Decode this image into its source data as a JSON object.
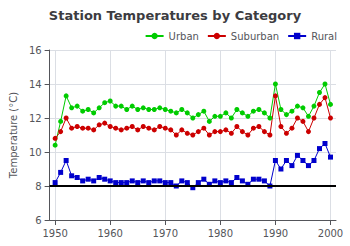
{
  "chart_data": {
    "type": "line",
    "title": "Station Temperatures by Category",
    "y_label": "Temperature (°C)",
    "x": [
      1950,
      1951,
      1952,
      1953,
      1954,
      1955,
      1956,
      1957,
      1958,
      1959,
      1960,
      1961,
      1962,
      1963,
      1964,
      1965,
      1966,
      1967,
      1968,
      1969,
      1970,
      1971,
      1972,
      1973,
      1974,
      1975,
      1976,
      1977,
      1978,
      1979,
      1980,
      1981,
      1982,
      1983,
      1984,
      1985,
      1986,
      1987,
      1988,
      1989,
      1990,
      1991,
      1992,
      1993,
      1994,
      1995,
      1996,
      1997,
      1998,
      1999,
      2000
    ],
    "series": [
      {
        "name": "Urban",
        "color": "#00cc00",
        "marker": "circle",
        "values": [
          10.4,
          11.8,
          13.3,
          12.6,
          12.7,
          12.4,
          12.5,
          12.3,
          12.6,
          12.9,
          13.0,
          12.7,
          12.7,
          12.5,
          12.7,
          12.5,
          12.6,
          12.5,
          12.5,
          12.6,
          12.5,
          12.4,
          12.3,
          12.5,
          12.3,
          12.0,
          12.2,
          12.4,
          11.8,
          12.1,
          12.1,
          12.3,
          12.0,
          12.5,
          12.3,
          12.1,
          12.4,
          12.5,
          12.3,
          12.0,
          14.0,
          12.5,
          12.2,
          12.4,
          12.7,
          12.6,
          12.1,
          12.7,
          13.5,
          14.0,
          12.8
        ]
      },
      {
        "name": "Suburban",
        "color": "#cc0000",
        "marker": "circle",
        "values": [
          10.8,
          11.2,
          12.0,
          11.4,
          11.5,
          11.4,
          11.4,
          11.3,
          11.6,
          11.7,
          11.5,
          11.4,
          11.3,
          11.4,
          11.5,
          11.3,
          11.5,
          11.4,
          11.3,
          11.5,
          11.4,
          11.3,
          11.0,
          11.3,
          11.1,
          11.0,
          11.2,
          11.4,
          11.0,
          11.2,
          11.2,
          11.3,
          11.1,
          11.5,
          11.2,
          11.0,
          11.4,
          11.5,
          11.2,
          11.0,
          13.3,
          11.5,
          11.1,
          11.4,
          12.0,
          11.8,
          11.2,
          12.0,
          12.8,
          13.2,
          12.0
        ]
      },
      {
        "name": "Rural",
        "color": "#0000cc",
        "marker": "square",
        "values": [
          8.2,
          8.8,
          9.5,
          8.6,
          8.5,
          8.3,
          8.4,
          8.3,
          8.5,
          8.4,
          8.3,
          8.2,
          8.2,
          8.2,
          8.3,
          8.2,
          8.3,
          8.2,
          8.3,
          8.3,
          8.2,
          8.2,
          8.0,
          8.3,
          8.2,
          7.9,
          8.2,
          8.4,
          8.1,
          8.3,
          8.2,
          8.3,
          8.2,
          8.5,
          8.3,
          8.1,
          8.4,
          8.4,
          8.3,
          8.0,
          9.5,
          9.0,
          9.5,
          9.2,
          9.8,
          9.5,
          9.2,
          9.5,
          10.2,
          10.5,
          9.7
        ]
      }
    ],
    "hline_y": 8.0,
    "xlim": [
      1949,
      2001
    ],
    "xticks": [
      1950,
      1960,
      1970,
      1980,
      1990,
      2000
    ],
    "ylim": [
      6,
      16
    ],
    "yticks": [
      6,
      8,
      10,
      12,
      14,
      16
    ],
    "grid": true,
    "legend": "upper right"
  }
}
